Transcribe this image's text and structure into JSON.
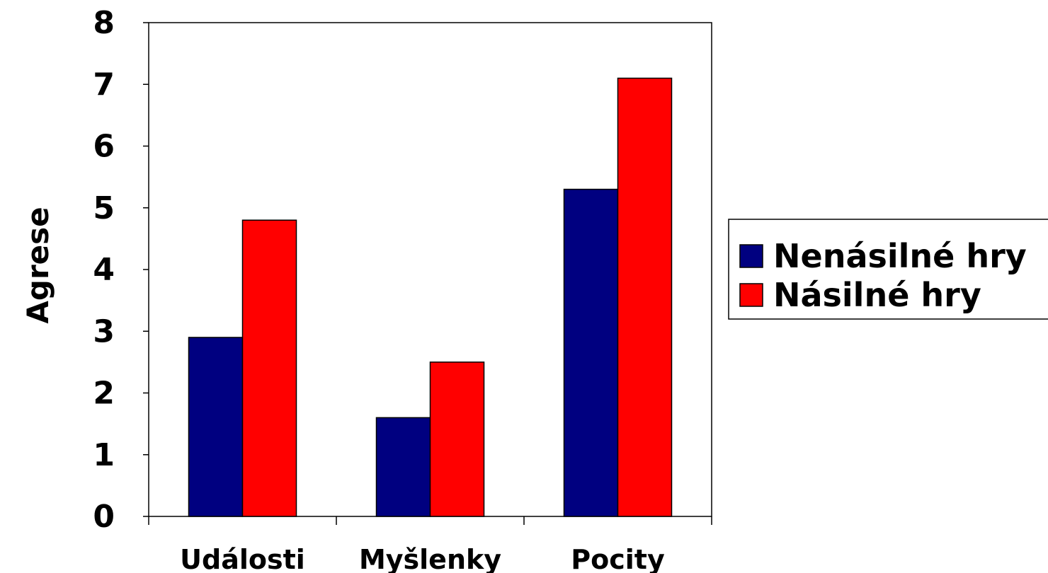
{
  "chart_data": {
    "type": "bar",
    "title": "",
    "xlabel": "",
    "ylabel": "Agrese",
    "categories": [
      "Události",
      "Myšlenky",
      "Pocity"
    ],
    "series": [
      {
        "name": "Nenásilné hry",
        "values": [
          2.9,
          1.6,
          5.3
        ],
        "color": "#000080"
      },
      {
        "name": "Násilné hry",
        "values": [
          4.8,
          2.5,
          7.1
        ],
        "color": "#ff0000"
      }
    ],
    "ylim": [
      0,
      8
    ],
    "yticks": [
      "0",
      "1",
      "2",
      "3",
      "4",
      "5",
      "6",
      "7",
      "8"
    ],
    "grid": false,
    "legend_position": "right"
  }
}
